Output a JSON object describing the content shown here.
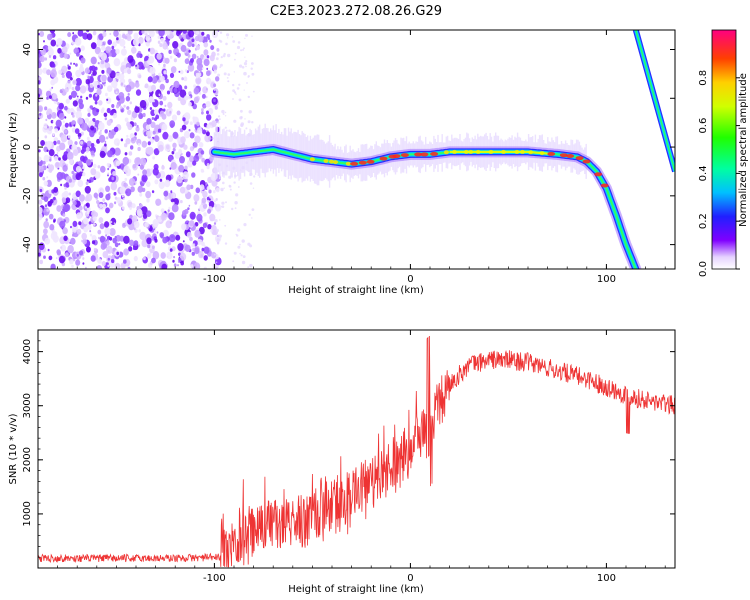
{
  "figure_title": "C2E3.2023.272.08.26.G29",
  "chart_data": [
    {
      "type": "heatmap",
      "xlabel": "Height of straight line (km)",
      "ylabel": "Frequency (Hz)",
      "xlim": [
        -190,
        135
      ],
      "ylim": [
        -50,
        48
      ],
      "x_ticks": [
        -100,
        0,
        100
      ],
      "y_ticks": [
        -40,
        -20,
        0,
        20,
        40
      ],
      "colorbar": {
        "label": "Normalized spectral amplitude",
        "range": [
          0,
          1
        ],
        "ticks": [
          0.0,
          0.2,
          0.4,
          0.6,
          0.8
        ]
      },
      "noise_region": {
        "x_from": -190,
        "x_to": -100
      },
      "ridge": {
        "description_values": "frequency ridge center (Hz) vs height (km)",
        "x": [
          -100,
          -90,
          -80,
          -70,
          -60,
          -50,
          -40,
          -30,
          -20,
          -10,
          0,
          10,
          20,
          40,
          60,
          75,
          85,
          90,
          95,
          100,
          105,
          110,
          115
        ],
        "y": [
          -2,
          -3,
          -2,
          -1,
          -3,
          -5,
          -6,
          -7,
          -6,
          -4,
          -3,
          -3,
          -2,
          -2,
          -2,
          -3,
          -4,
          -6,
          -10,
          -17,
          -28,
          -40,
          -50
        ]
      },
      "secondary_ridge": {
        "x": [
          115,
          135
        ],
        "y": [
          48,
          -10
        ]
      }
    },
    {
      "type": "line",
      "xlabel": "Height of straight line (km)",
      "ylabel": "SNR (10 * v/v)",
      "xlim": [
        -190,
        135
      ],
      "ylim": [
        0,
        4400
      ],
      "x_ticks": [
        -100,
        0,
        100
      ],
      "y_ticks": [
        1000,
        2000,
        3000,
        4000
      ],
      "series": [
        {
          "color": "#ee3333",
          "envelope_x": [
            -190,
            -120,
            -97,
            -90,
            -80,
            -70,
            -60,
            -50,
            -40,
            -30,
            -20,
            -10,
            0,
            5,
            10,
            15,
            20,
            30,
            40,
            50,
            60,
            70,
            80,
            90,
            100,
            110,
            120,
            135
          ],
          "envelope_y": [
            180,
            180,
            200,
            450,
            650,
            750,
            850,
            950,
            1100,
            1300,
            1600,
            1900,
            2200,
            2500,
            2700,
            3000,
            3400,
            3750,
            3850,
            3850,
            3800,
            3700,
            3600,
            3500,
            3350,
            3200,
            3100,
            3000
          ]
        }
      ]
    }
  ]
}
